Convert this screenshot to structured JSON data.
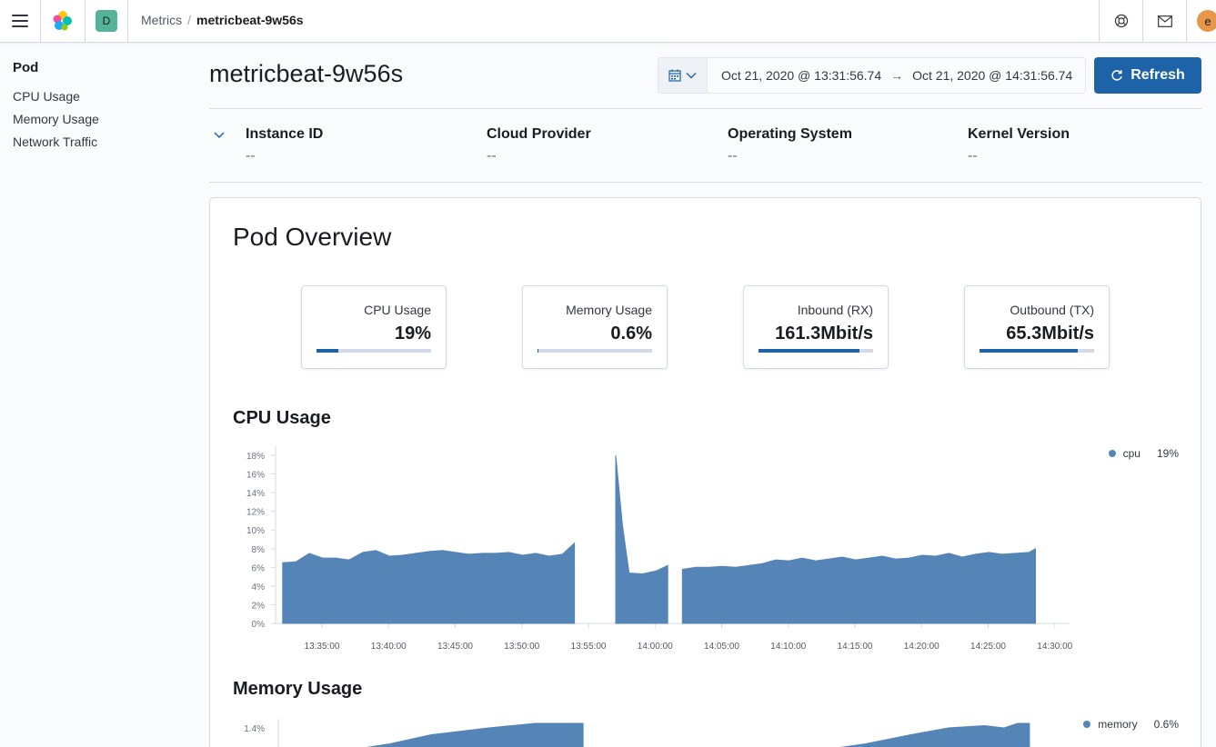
{
  "header": {
    "space_initial": "D",
    "breadcrumbs": [
      "Metrics",
      "metricbeat-9w56s"
    ],
    "breadcrumb_separator": "/",
    "user_initial": "e",
    "icons": [
      "menu-icon",
      "elastic-logo-icon",
      "help-icon",
      "mail-icon"
    ]
  },
  "sidebar": {
    "title": "Pod",
    "items": [
      "CPU Usage",
      "Memory Usage",
      "Network Traffic"
    ]
  },
  "page": {
    "title": "metricbeat-9w56s",
    "date_start": "Oct 21, 2020 @ 13:31:56.74",
    "date_end": "Oct 21, 2020 @ 14:31:56.74",
    "date_arrow": "→",
    "refresh_label": "Refresh"
  },
  "metadata": [
    {
      "label": "Instance ID",
      "value": "--"
    },
    {
      "label": "Cloud Provider",
      "value": "--"
    },
    {
      "label": "Operating System",
      "value": "--"
    },
    {
      "label": "Kernel Version",
      "value": "--"
    }
  ],
  "overview": {
    "title": "Pod Overview",
    "kpis": [
      {
        "label": "CPU Usage",
        "value": "19%",
        "fill": 0.19
      },
      {
        "label": "Memory Usage",
        "value": "0.6%",
        "fill": 0.01
      },
      {
        "label": "Inbound (RX)",
        "value": "161.3Mbit/s",
        "fill": 0.88
      },
      {
        "label": "Outbound (TX)",
        "value": "65.3Mbit/s",
        "fill": 0.86
      }
    ]
  },
  "colors": {
    "accent": "#1e63a8",
    "series": "#5584b7",
    "space_badge": "#54b399",
    "avatar": "#e7964a"
  },
  "chart_data": [
    {
      "type": "area",
      "title": "CPU Usage",
      "ylim": [
        0,
        18
      ],
      "yticks": [
        "0%",
        "2%",
        "4%",
        "6%",
        "8%",
        "10%",
        "12%",
        "14%",
        "16%",
        "18%"
      ],
      "xticks": [
        "13:35:00",
        "13:40:00",
        "13:45:00",
        "13:50:00",
        "13:55:00",
        "14:00:00",
        "14:05:00",
        "14:10:00",
        "14:15:00",
        "14:20:00",
        "14:25:00",
        "14:30:00"
      ],
      "legend": "top-right",
      "series": [
        {
          "name": "cpu",
          "legend_value": "19%",
          "segments": [
            [
              [
                -2.95,
                6.5
              ],
              [
                -1.95,
                6.6
              ],
              [
                -0.95,
                7.5
              ],
              [
                0.05,
                7.0
              ],
              [
                1.05,
                7.0
              ],
              [
                2.05,
                6.8
              ],
              [
                3.05,
                7.6
              ],
              [
                4.05,
                7.8
              ],
              [
                5.05,
                7.2
              ],
              [
                6.05,
                7.3
              ],
              [
                7.05,
                7.5
              ],
              [
                8.05,
                7.7
              ],
              [
                9.05,
                7.8
              ],
              [
                10.05,
                7.6
              ],
              [
                11.05,
                7.4
              ],
              [
                12.05,
                7.5
              ],
              [
                13.05,
                7.5
              ],
              [
                14.05,
                7.6
              ],
              [
                15.05,
                7.3
              ],
              [
                16.05,
                7.5
              ],
              [
                17.05,
                7.2
              ],
              [
                18.05,
                7.4
              ],
              [
                18.95,
                8.6
              ]
            ],
            [
              [
                22.05,
                18.0
              ],
              [
                22.55,
                10.5
              ],
              [
                23.05,
                5.4
              ],
              [
                24.05,
                5.3
              ],
              [
                25.05,
                5.6
              ],
              [
                25.95,
                6.2
              ]
            ],
            [
              [
                27.05,
                5.8
              ],
              [
                28.05,
                6.0
              ],
              [
                29.05,
                6.0
              ],
              [
                30.05,
                6.1
              ],
              [
                31.05,
                6.0
              ],
              [
                32.05,
                6.2
              ],
              [
                33.05,
                6.4
              ],
              [
                34.05,
                6.8
              ],
              [
                35.05,
                6.7
              ],
              [
                36.05,
                7.0
              ],
              [
                37.05,
                6.7
              ],
              [
                38.05,
                6.9
              ],
              [
                39.05,
                7.1
              ],
              [
                40.05,
                6.8
              ],
              [
                41.05,
                7.0
              ],
              [
                42.05,
                7.2
              ],
              [
                43.05,
                6.9
              ],
              [
                44.05,
                7.0
              ],
              [
                45.05,
                7.3
              ],
              [
                46.05,
                7.2
              ],
              [
                47.05,
                7.5
              ],
              [
                48.05,
                7.1
              ],
              [
                49.05,
                7.4
              ],
              [
                50.05,
                7.6
              ],
              [
                51.05,
                7.4
              ],
              [
                52.05,
                7.5
              ],
              [
                53.05,
                7.6
              ],
              [
                53.55,
                8.0
              ]
            ]
          ]
        }
      ]
    },
    {
      "type": "area",
      "title": "Memory Usage",
      "yticks": [
        "1.4%"
      ],
      "legend": "top-right",
      "series": [
        {
          "name": "memory",
          "legend_value": "0.6%",
          "segments": [
            [
              [
                1.8,
                1.3
              ],
              [
                5.1,
                1.33
              ],
              [
                8.2,
                1.37
              ],
              [
                12.5,
                1.4
              ],
              [
                16.0,
                1.42
              ],
              [
                19.6,
                1.42
              ]
            ],
            [
              [
                37.2,
                1.3
              ],
              [
                40.8,
                1.33
              ],
              [
                44.2,
                1.37
              ],
              [
                47.0,
                1.4
              ],
              [
                49.7,
                1.41
              ],
              [
                51.2,
                1.4
              ],
              [
                52.2,
                1.42
              ],
              [
                53.1,
                1.42
              ]
            ]
          ]
        }
      ]
    }
  ]
}
